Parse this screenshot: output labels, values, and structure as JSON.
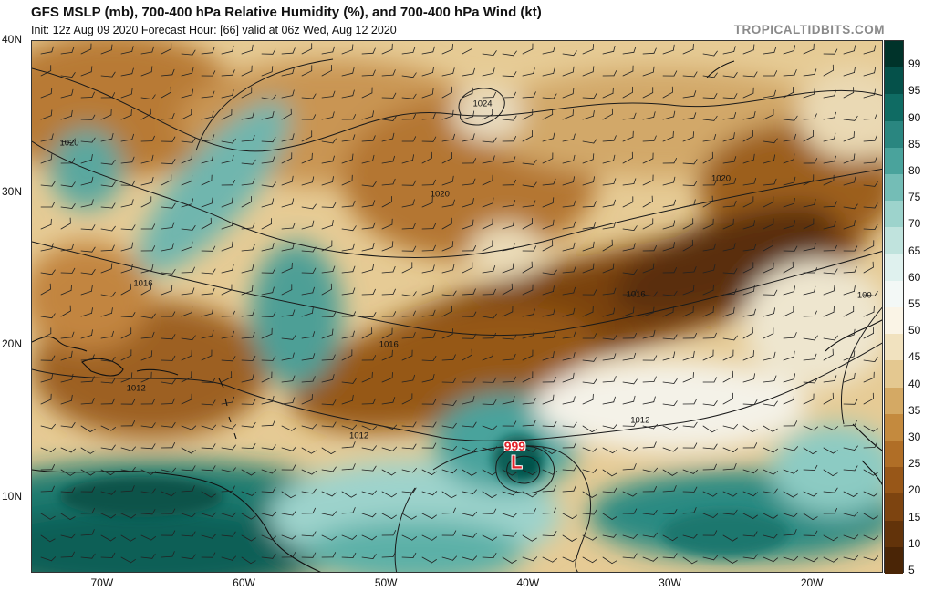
{
  "header": {
    "title": "GFS MSLP (mb), 700-400 hPa Relative Humidity (%), and 700-400 hPa Wind (kt)",
    "subtitle": "Init: 12z Aug 09 2020   Forecast Hour: [66]   valid at 06z Wed, Aug 12 2020",
    "brand": "TROPICALTIDBITS.COM"
  },
  "axes": {
    "lat_labels": [
      "40N",
      "30N",
      "20N",
      "10N"
    ],
    "lat_values": [
      40,
      30,
      20,
      10
    ],
    "lon_labels": [
      "70W",
      "60W",
      "50W",
      "40W",
      "30W",
      "20W"
    ],
    "lon_values": [
      -70,
      -60,
      -50,
      -40,
      -30,
      -20
    ],
    "lon_range": [
      -75,
      -15
    ],
    "lat_range": [
      5,
      40
    ]
  },
  "colorbar": {
    "labels": [
      "99",
      "95",
      "90",
      "85",
      "80",
      "75",
      "70",
      "65",
      "60",
      "55",
      "50",
      "45",
      "40",
      "35",
      "30",
      "25",
      "20",
      "15",
      "10",
      "5"
    ],
    "colors": [
      "#00332a",
      "#05514a",
      "#0f6b63",
      "#2a8680",
      "#4aa39c",
      "#74bdb6",
      "#9dd3cc",
      "#c0e3dd",
      "#dff1ee",
      "#f3f8f6",
      "#faf4e6",
      "#f1e2bf",
      "#e4c890",
      "#d4a964",
      "#c48a3e",
      "#b06e26",
      "#985718",
      "#7d4410",
      "#62330a",
      "#4a2506"
    ]
  },
  "isobars": [
    {
      "label": "1024",
      "lon": -43.2,
      "lat": 35.8
    },
    {
      "label": "1020",
      "lon": -72.3,
      "lat": 33.2
    },
    {
      "label": "1020",
      "lon": -46.2,
      "lat": 29.9
    },
    {
      "label": "1020",
      "lon": -26.4,
      "lat": 30.9
    },
    {
      "label": "1016",
      "lon": -67.1,
      "lat": 24.0
    },
    {
      "label": "1016",
      "lon": -49.8,
      "lat": 20.0
    },
    {
      "label": "1016",
      "lon": -32.4,
      "lat": 23.3
    },
    {
      "label": "1012",
      "lon": -67.6,
      "lat": 17.1
    },
    {
      "label": "1012",
      "lon": -51.9,
      "lat": 14.0
    },
    {
      "label": "1012",
      "lon": -32.1,
      "lat": 15.0
    },
    {
      "label": "100",
      "lon": -16.3,
      "lat": 23.2
    }
  ],
  "low": {
    "pressure": "999",
    "symbol": "L",
    "lon": -40.8,
    "lat": 12.4
  }
}
